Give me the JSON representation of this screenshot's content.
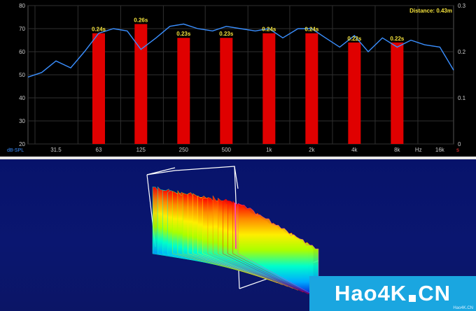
{
  "chart_data": {
    "type": "bar",
    "title": "",
    "xlabel": "Hz",
    "ylabel": "dB-SPL",
    "distance_label": "Distance: 0.43m",
    "x_scale": "log",
    "x_ticks": [
      "31.5",
      "63",
      "125",
      "250",
      "500",
      "1k",
      "2k",
      "4k",
      "8k",
      "Hz",
      "16k",
      "s"
    ],
    "y_ticks_left": [
      "20",
      "30",
      "40",
      "50",
      "60",
      "70",
      "80"
    ],
    "y_ticks_right": [
      "0",
      "0.1",
      "0.2",
      "0.3"
    ],
    "ylim_left": [
      20,
      80
    ],
    "ylim_right": [
      0,
      0.3
    ],
    "grid": true,
    "categories": [
      "63",
      "125",
      "250",
      "500",
      "1k",
      "2k",
      "4k",
      "8k"
    ],
    "bar_values_s": [
      0.24,
      0.26,
      0.23,
      0.23,
      0.24,
      0.24,
      0.22,
      0.22
    ],
    "bar_labels": [
      "0.24s",
      "0.26s",
      "0.23s",
      "0.23s",
      "0.24s",
      "0.24s",
      "0.22s",
      "0.22s"
    ],
    "line_series": {
      "x_hz": [
        20,
        25,
        31.5,
        40,
        50,
        63,
        80,
        100,
        125,
        160,
        200,
        250,
        315,
        400,
        500,
        630,
        800,
        1000,
        1250,
        1600,
        2000,
        2500,
        3150,
        4000,
        5000,
        6300,
        8000,
        10000,
        12500,
        16000,
        20000
      ],
      "y_db": [
        49,
        51,
        56,
        53,
        60,
        68,
        70,
        69,
        61,
        66,
        71,
        72,
        70,
        69,
        71,
        70,
        69,
        70,
        66,
        70,
        70,
        66,
        62,
        67,
        60,
        66,
        62,
        65,
        63,
        62,
        52
      ]
    }
  },
  "colors": {
    "bar": "#e00000",
    "line": "#3a8fff",
    "grid": "#2f2f2f",
    "label": "#f4e23c",
    "axis_text": "#cccccc",
    "ylabel_text": "#3a8fff"
  },
  "waterfall": {
    "type": "3d-waterfall",
    "colormap": [
      "#0000cc",
      "#00aaff",
      "#00ffcc",
      "#aaff00",
      "#ffee00",
      "#ff8800",
      "#ff0000",
      "#ff44aa"
    ]
  },
  "watermark": {
    "text_left": "Hao4K",
    "text_right": "CN",
    "sub": "Hao4K.CN"
  }
}
